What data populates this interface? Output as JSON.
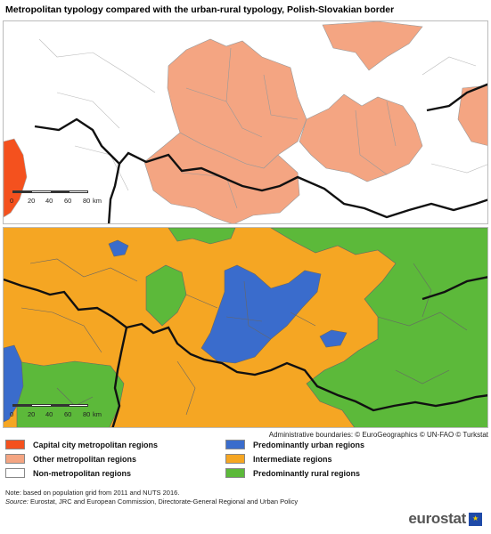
{
  "title": "Metropolitan typology compared with the urban-rural typology, Polish-Slovakian border",
  "scale": {
    "ticks": [
      "0",
      "20",
      "40",
      "60",
      "80"
    ],
    "unit": "km"
  },
  "attribution": "Administrative boundaries: © EuroGeographics © UN-FAO © Turkstat",
  "colors": {
    "capital_metro": "#f4511e",
    "other_metro": "#f4a582",
    "non_metro": "#ffffff",
    "urban": "#3a6ccc",
    "intermediate": "#f5a623",
    "rural": "#5cb93a",
    "border": "#111111"
  },
  "legend": {
    "left": [
      {
        "label": "Capital city metropolitan regions",
        "color": "#f4511e"
      },
      {
        "label": "Other metropolitan regions",
        "color": "#f4a582"
      },
      {
        "label": "Non-metropolitan regions",
        "color": "#ffffff"
      }
    ],
    "right": [
      {
        "label": "Predominantly urban regions",
        "color": "#3a6ccc"
      },
      {
        "label": "Intermediate regions",
        "color": "#f5a623"
      },
      {
        "label": "Predominantly rural regions",
        "color": "#5cb93a"
      }
    ]
  },
  "note": "Note: based on population grid from 2011 and NUTS 2016.",
  "source_label": "Source:",
  "source_text": " Eurostat, JRC and European Commission, Directorate-General Regional and Urban Policy",
  "logo": {
    "text": "eurostat",
    "icon": "eu-flag-icon"
  }
}
